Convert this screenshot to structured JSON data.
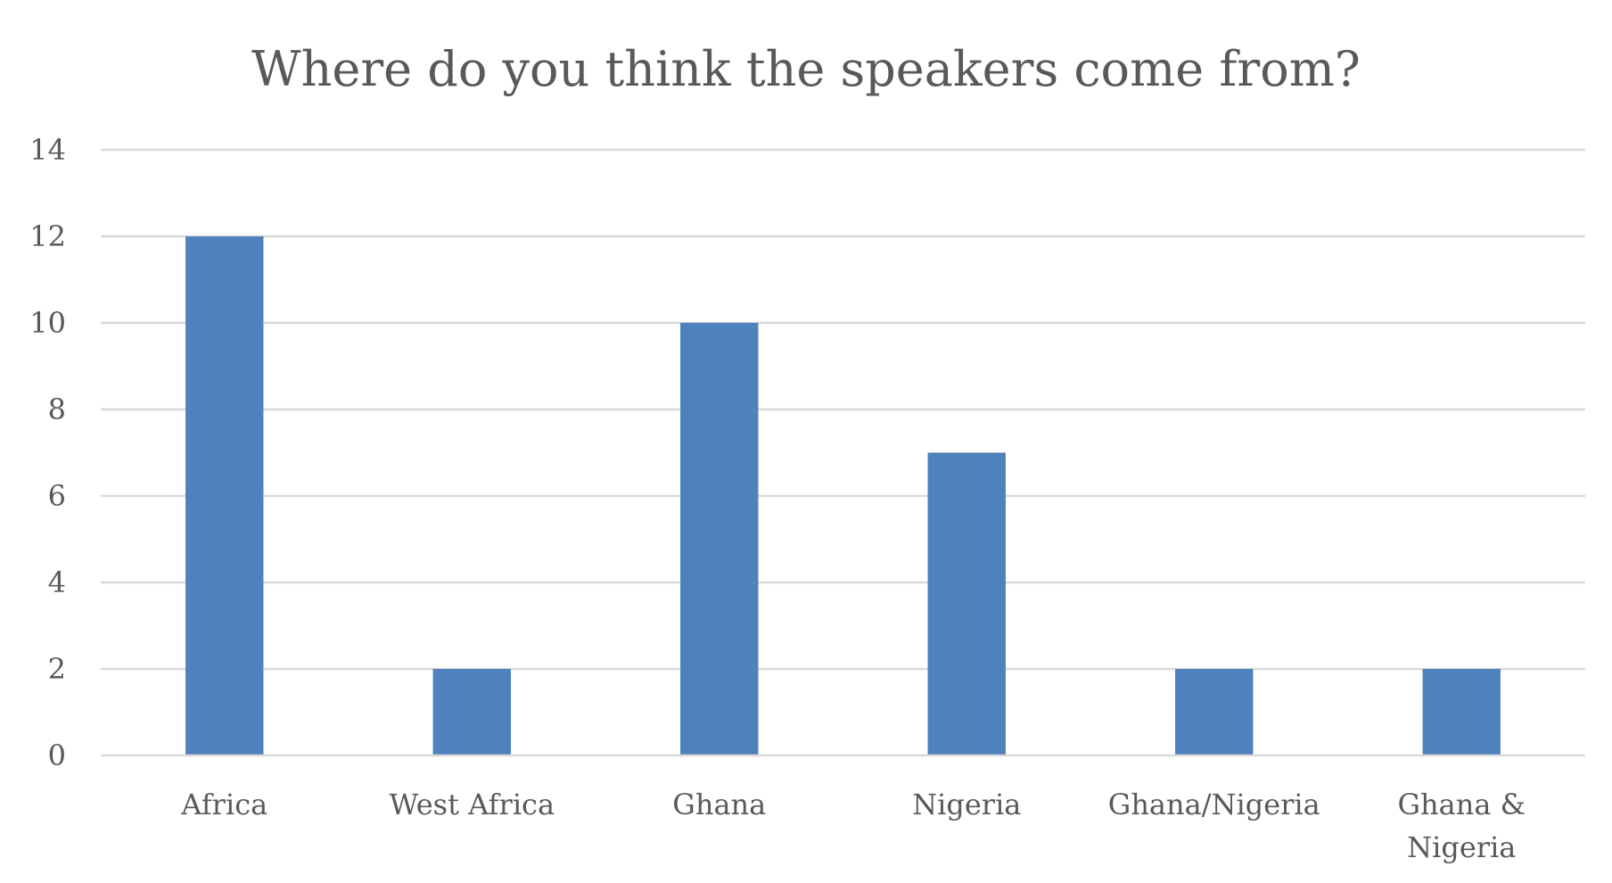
{
  "chart_data": {
    "type": "bar",
    "title": "Where do you think the speakers come from?",
    "categories": [
      "Africa",
      "West Africa",
      "Ghana",
      "Nigeria",
      "Ghana/Nigeria",
      "Ghana & Nigeria"
    ],
    "category_lines": [
      [
        "Africa"
      ],
      [
        "West Africa"
      ],
      [
        "Ghana"
      ],
      [
        "Nigeria"
      ],
      [
        "Ghana/Nigeria"
      ],
      [
        "Ghana &",
        "Nigeria"
      ]
    ],
    "values": [
      12,
      2,
      10,
      7,
      2,
      2
    ],
    "xlabel": "",
    "ylabel": "",
    "ylim": [
      0,
      14
    ],
    "yticks": [
      0,
      2,
      4,
      6,
      8,
      10,
      12,
      14
    ],
    "grid": true,
    "legend": "none",
    "bar_color": "#4f81bd"
  }
}
